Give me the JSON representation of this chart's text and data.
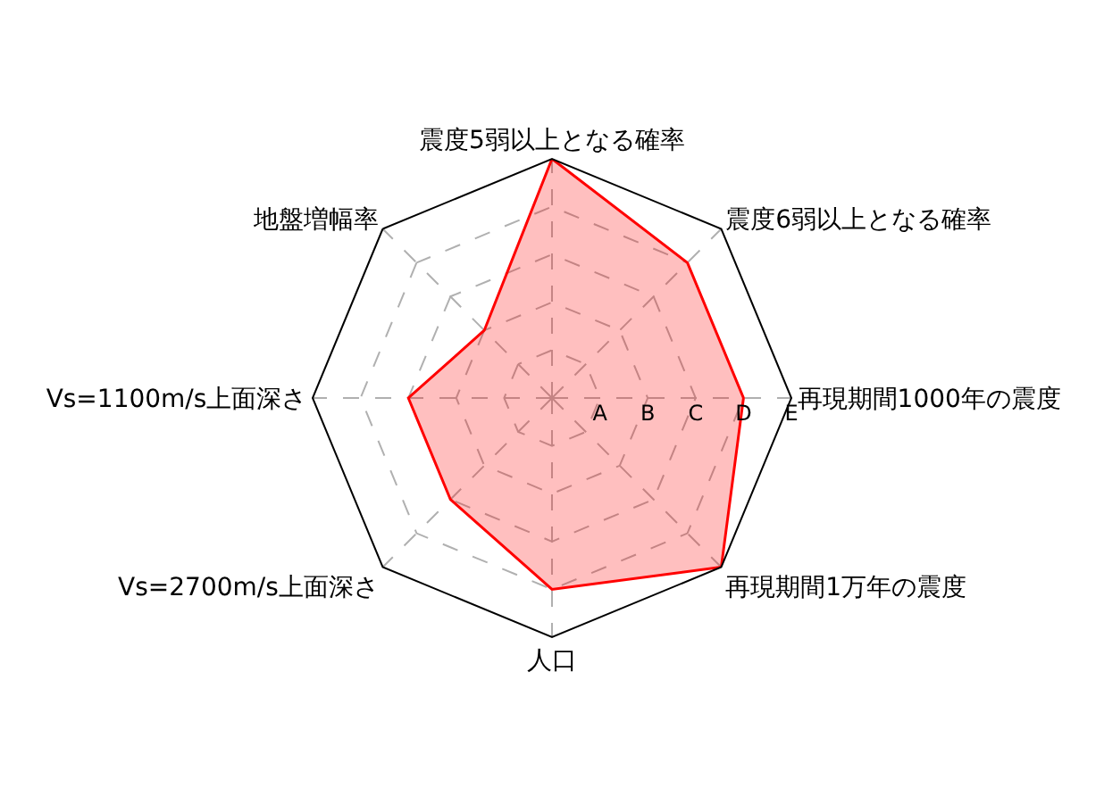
{
  "chart_data": {
    "type": "radar",
    "categories": [
      "震度5弱以上となる確率",
      "震度6弱以上となる確率",
      "再現期間1000年の震度",
      "再現期間1万年の震度",
      "人口",
      "Vs=2700m/s上面深さ",
      "Vs=1100m/s上面深さ",
      "地盤増幅率"
    ],
    "series": [
      {
        "color": "#ff0000",
        "values": [
          5,
          4,
          4,
          5,
          4,
          3,
          3,
          2
        ]
      }
    ],
    "ylim": [
      0,
      5
    ],
    "yticks": [
      {
        "value": 1,
        "label": "A"
      },
      {
        "value": 2,
        "label": "B"
      },
      {
        "value": 3,
        "label": "C"
      },
      {
        "value": 4,
        "label": "D"
      },
      {
        "value": 5,
        "label": "E"
      }
    ],
    "grid": true
  }
}
